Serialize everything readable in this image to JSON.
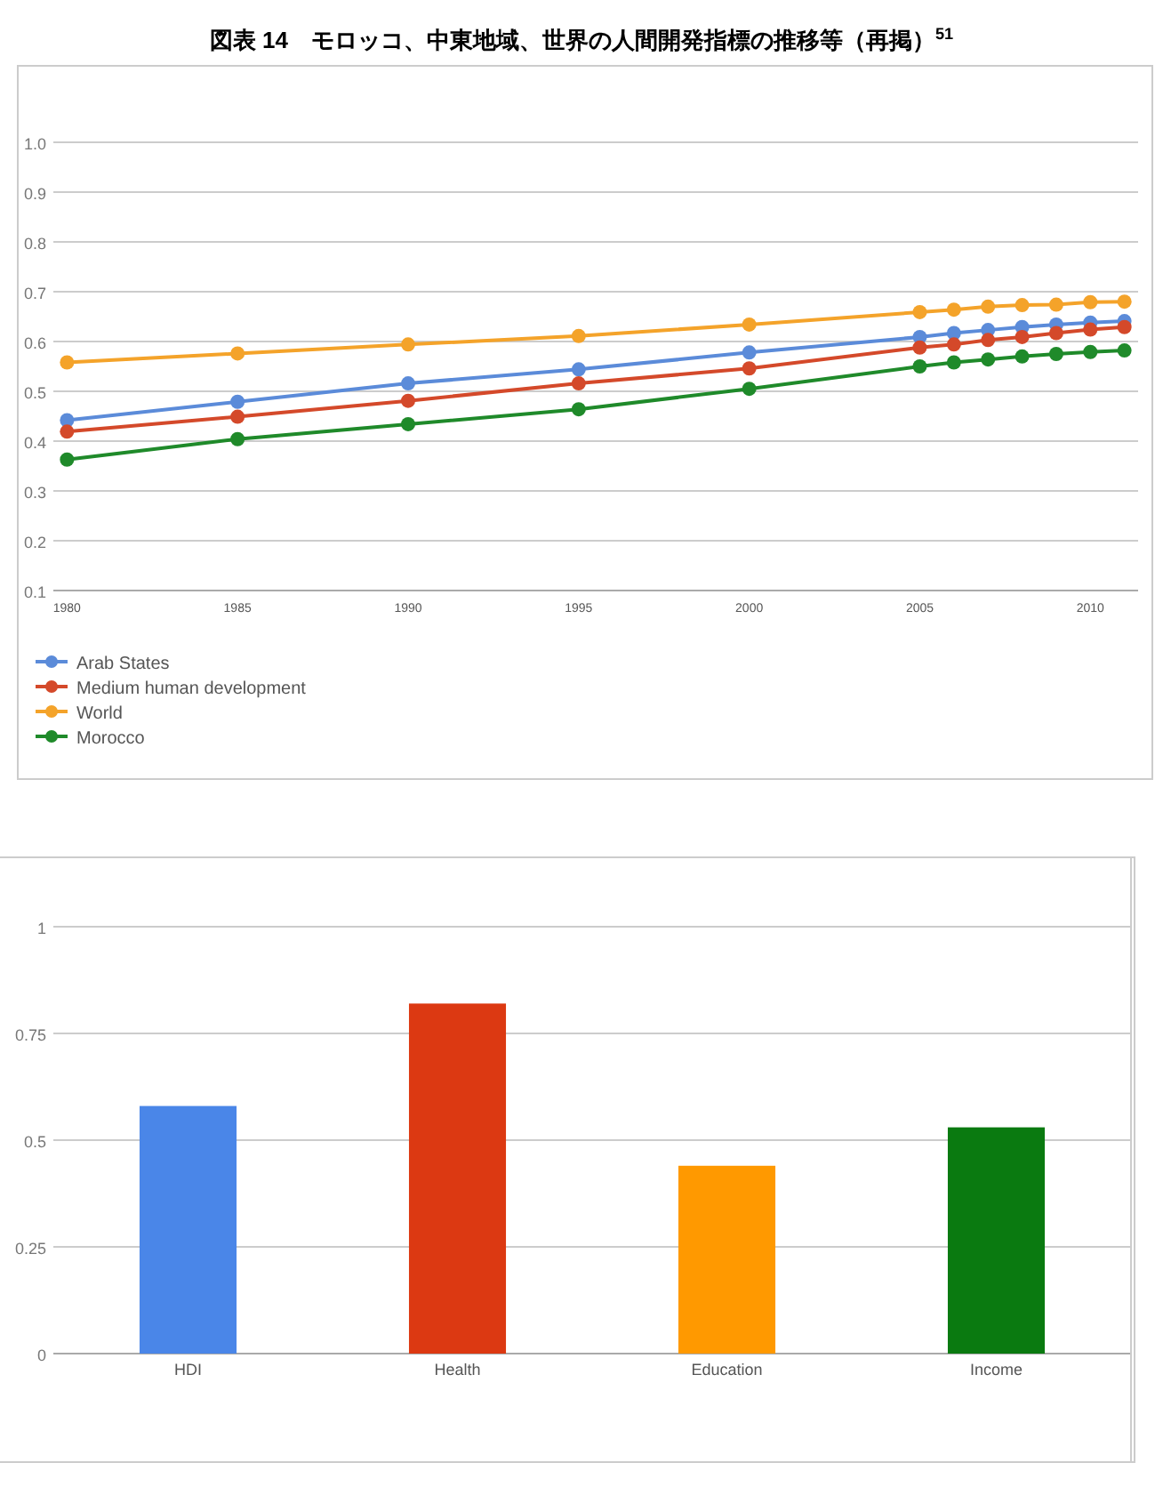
{
  "chart_data": [
    {
      "type": "line",
      "title": "図表 14　モロッコ、中東地域、世界の人間開発指標の推移等（再掲）$^{51}$",
      "x": [
        1980,
        1985,
        1990,
        1995,
        2000,
        2005,
        2006,
        2007,
        2008,
        2009,
        2010,
        2011
      ],
      "xlim": [
        1979.6,
        2011.4
      ],
      "xticks": [
        1980,
        1985,
        1990,
        1995,
        2000,
        2005,
        2010
      ],
      "ylim": [
        0.1,
        1.0
      ],
      "yticks": [
        {
          "value": 0.1,
          "label": "0.1"
        },
        {
          "value": 0.2,
          "label": "0.2"
        },
        {
          "value": 0.3,
          "label": "0.3"
        },
        {
          "value": 0.4,
          "label": "0.4"
        },
        {
          "value": 0.5,
          "label": "0.5"
        },
        {
          "value": 0.6,
          "label": "0.6"
        },
        {
          "value": 0.7,
          "label": "0.7"
        },
        {
          "value": 0.8,
          "label": "0.8"
        },
        {
          "value": 0.9,
          "label": "0.9"
        },
        {
          "value": 1.0,
          "label": "1.0"
        }
      ],
      "grid": "y",
      "legend": "bottom",
      "marker": "circle",
      "series": [
        {
          "name": "Arab States",
          "color": "#5b8bd9",
          "values": [
            0.442,
            0.479,
            0.516,
            0.544,
            0.578,
            0.609,
            0.617,
            0.623,
            0.629,
            0.634,
            0.638,
            0.641
          ]
        },
        {
          "name": "Medium human development",
          "color": "#d4492a",
          "values": [
            0.419,
            0.449,
            0.481,
            0.516,
            0.546,
            0.588,
            0.594,
            0.603,
            0.609,
            0.617,
            0.624,
            0.629
          ]
        },
        {
          "name": "World",
          "color": "#f4a32a",
          "values": [
            0.558,
            0.576,
            0.594,
            0.611,
            0.634,
            0.659,
            0.664,
            0.67,
            0.673,
            0.674,
            0.679,
            0.68
          ]
        },
        {
          "name": "Morocco",
          "color": "#1f8a2a",
          "values": [
            0.363,
            0.404,
            0.434,
            0.464,
            0.505,
            0.55,
            0.558,
            0.564,
            0.57,
            0.575,
            0.579,
            0.582
          ]
        }
      ]
    },
    {
      "type": "bar",
      "categories": [
        "HDI",
        "Health",
        "Education",
        "Income"
      ],
      "values": [
        0.58,
        0.82,
        0.44,
        0.53
      ],
      "colors": [
        "#4a86e8",
        "#dc3912",
        "#ff9900",
        "#0a7a10"
      ],
      "ylim": [
        0,
        1
      ],
      "yticks": [
        0,
        0.25,
        0.5,
        0.75,
        1
      ],
      "grid": "y"
    }
  ]
}
